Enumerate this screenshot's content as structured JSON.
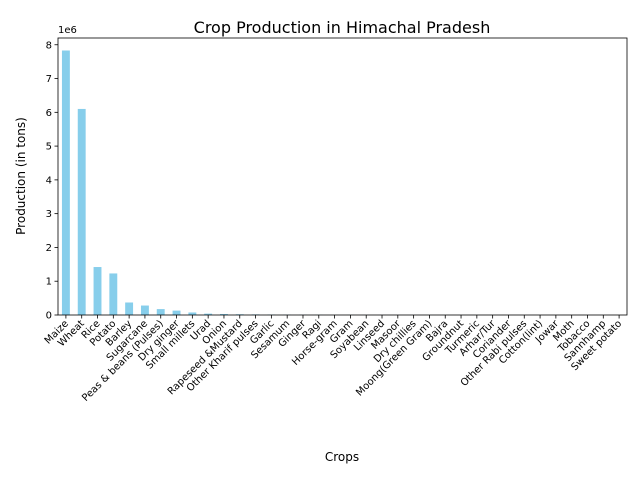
{
  "colors": {
    "bar": "#87CEEB",
    "axes": "#000000",
    "background": "#ffffff"
  },
  "chart_data": {
    "type": "bar",
    "title": "Crop Production in Himachal Pradesh",
    "xlabel": "Crops",
    "ylabel": "Production (in tons)",
    "offset_label": "1e6",
    "ylim": [
      0,
      8200000
    ],
    "yticks": [
      0,
      1000000,
      2000000,
      3000000,
      4000000,
      5000000,
      6000000,
      7000000,
      8000000
    ],
    "ytick_labels": [
      "0",
      "1",
      "2",
      "3",
      "4",
      "5",
      "6",
      "7",
      "8"
    ],
    "grid": false,
    "legend": "none",
    "categories": [
      "Maize",
      "Wheat",
      "Rice",
      "Potato",
      "Barley",
      "Sugarcane",
      "Peas & beans (Pulses)",
      "Dry ginger",
      "Small millets",
      "Urad",
      "Onion",
      "Rapeseed &Mustard",
      "Other Kharif pulses",
      "Garlic",
      "Sesamum",
      "Ginger",
      "Ragi",
      "Horse-gram",
      "Gram",
      "Soyabean",
      "Linseed",
      "Masoor",
      "Dry chillies",
      "Moong(Green Gram)",
      "Bajra",
      "Groundnut",
      "Turmeric",
      "Arhar/Tur",
      "Coriander",
      "Other  Rabi pulses",
      "Cotton(lint)",
      "Jowar",
      "Moth",
      "Tobacco",
      "Sannhamp",
      "Sweet potato"
    ],
    "values": [
      7830000,
      6100000,
      1420000,
      1230000,
      370000,
      280000,
      175000,
      130000,
      75000,
      40000,
      30000,
      22000,
      18000,
      13000,
      9000,
      7000,
      5500,
      4500,
      3500,
      2800,
      2200,
      1800,
      1400,
      1100,
      900,
      700,
      550,
      450,
      350,
      280,
      220,
      170,
      120,
      80,
      50,
      30
    ]
  }
}
